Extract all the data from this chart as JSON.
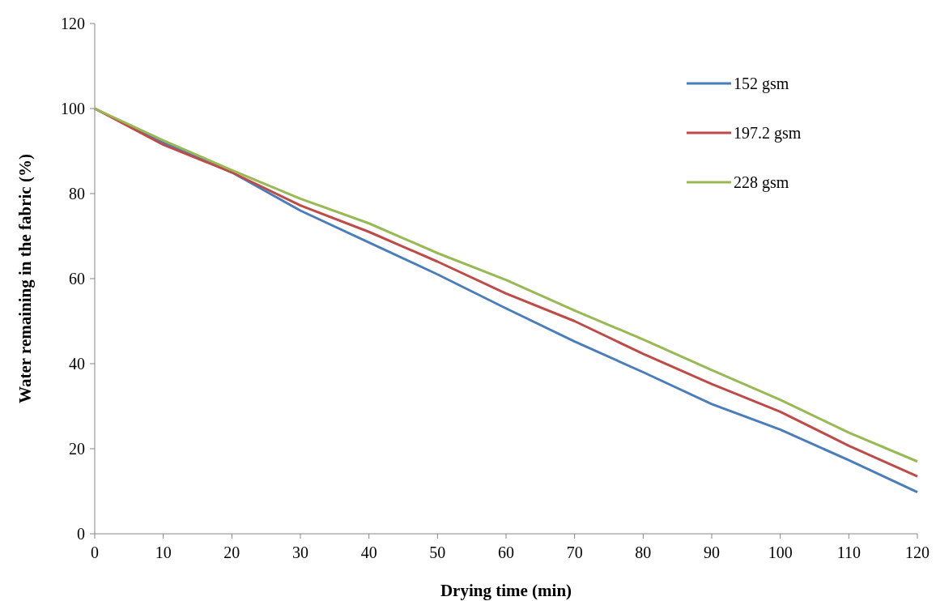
{
  "chart_data": {
    "type": "line",
    "xlabel": "Drying time (min)",
    "ylabel": "Water remaining in the fabric (%)",
    "x": [
      0,
      10,
      20,
      30,
      40,
      50,
      60,
      70,
      80,
      90,
      100,
      110,
      120
    ],
    "series": [
      {
        "name": "152 gsm",
        "color": "#4a7ebb",
        "values": [
          100,
          92,
          85,
          76,
          68.5,
          61,
          53,
          45.2,
          38,
          30.5,
          24.5,
          17.3,
          9.8
        ]
      },
      {
        "name": "197.2 gsm",
        "color": "#be4b48",
        "values": [
          100,
          91.5,
          85,
          77.2,
          71,
          64,
          56.5,
          50,
          42.3,
          35.2,
          28.7,
          20.7,
          13.5
        ]
      },
      {
        "name": "228 gsm",
        "color": "#98b954",
        "values": [
          100,
          92.5,
          85.5,
          78.8,
          73,
          66,
          59.7,
          52.5,
          45.7,
          38.5,
          31.5,
          23.8,
          17
        ]
      }
    ],
    "xlim": [
      0,
      120
    ],
    "xticks": [
      0,
      10,
      20,
      30,
      40,
      50,
      60,
      70,
      80,
      90,
      100,
      110,
      120
    ],
    "ylim": [
      0,
      120
    ],
    "yticks": [
      0,
      20,
      40,
      60,
      80,
      100,
      120
    ],
    "grid": false,
    "legend": "top right",
    "marker": "none",
    "line_style": "solid"
  }
}
